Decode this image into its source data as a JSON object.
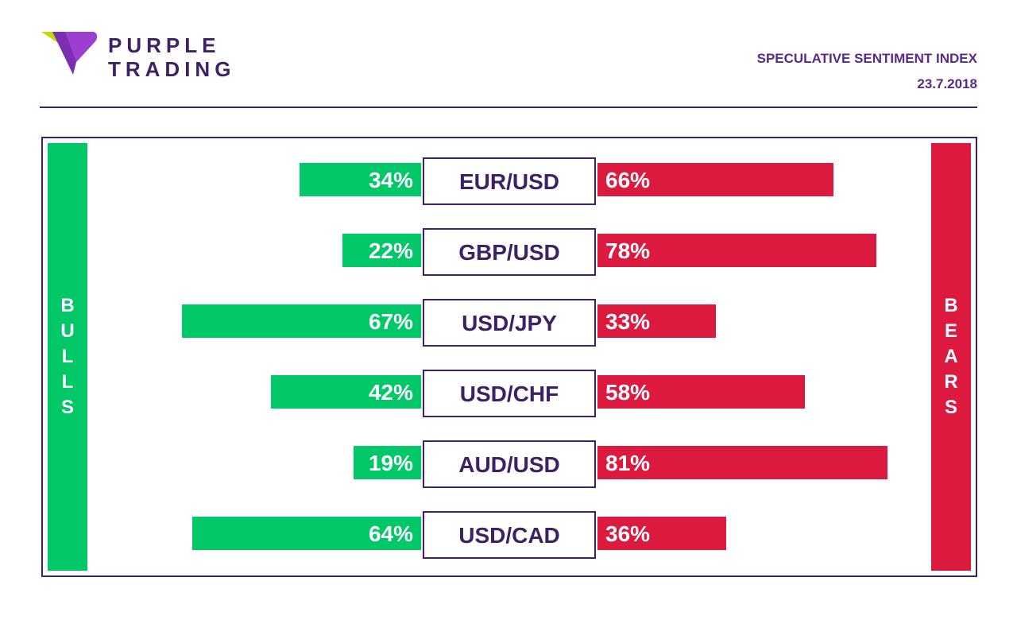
{
  "brand": {
    "line1": "PURPLE",
    "line2": "TRADING",
    "logo_icon": "purple-triangle-logo-icon"
  },
  "header": {
    "title": "SPECULATIVE SENTIMENT INDEX",
    "date": "23.7.2018"
  },
  "sides": {
    "bulls": "BULLS",
    "bears": "BEARS"
  },
  "colors": {
    "bulls": "#00c767",
    "bears": "#dc1a40",
    "brand": "#3d2166"
  },
  "chart_data": {
    "type": "bar",
    "categories": [
      "EUR/USD",
      "GBP/USD",
      "USD/JPY",
      "USD/CHF",
      "AUD/USD",
      "USD/CAD"
    ],
    "series": [
      {
        "name": "BULLS",
        "values": [
          34,
          22,
          67,
          42,
          19,
          64
        ],
        "labels": [
          "34%",
          "22%",
          "67%",
          "42%",
          "19%",
          "64%"
        ]
      },
      {
        "name": "BEARS",
        "values": [
          66,
          78,
          33,
          58,
          81,
          36
        ],
        "labels": [
          "66%",
          "78%",
          "33%",
          "58%",
          "81%",
          "36%"
        ]
      }
    ]
  }
}
